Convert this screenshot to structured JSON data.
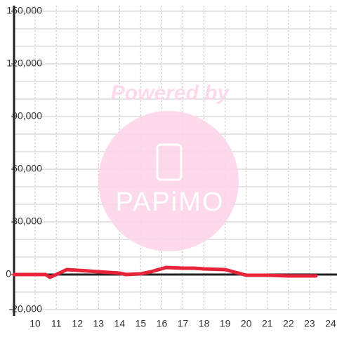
{
  "chart_data": {
    "type": "line",
    "watermark": {
      "text": "Powered by",
      "logo": "PAPiMO"
    },
    "x": [
      9,
      10,
      10.5,
      10.7,
      11,
      11.5,
      12,
      13,
      14,
      14.3,
      15,
      15.5,
      16.2,
      17,
      17.5,
      18,
      19,
      19.5,
      20,
      21,
      22,
      23.3
    ],
    "series": [
      {
        "color": "#e8243a",
        "values": [
          0,
          0,
          0,
          -1600,
          0,
          2800,
          2400,
          1600,
          800,
          0,
          400,
          1600,
          4000,
          3600,
          3600,
          3200,
          2800,
          1200,
          -400,
          -400,
          -800,
          -800
        ]
      }
    ],
    "xlim": [
      9,
      24.3
    ],
    "xticks": [
      10,
      11,
      12,
      13,
      14,
      15,
      16,
      17,
      18,
      19,
      20,
      21,
      22,
      23,
      24
    ],
    "ylim": [
      -20000,
      150000
    ],
    "yticks": [
      {
        "value": 150000,
        "label": "150,000"
      },
      {
        "value": 120000,
        "label": "120,000"
      },
      {
        "value": 90000,
        "label": "90,000"
      },
      {
        "value": 60000,
        "label": "60,000"
      },
      {
        "value": 30000,
        "label": "30,000"
      },
      0,
      {
        "value": -20000,
        "label": "-20,000"
      }
    ],
    "ygrid": [
      -20000,
      -10000,
      0,
      10000,
      20000,
      30000,
      40000,
      50000,
      60000,
      70000,
      80000,
      90000,
      100000,
      110000,
      120000,
      130000,
      140000,
      150000
    ],
    "grid": true
  }
}
